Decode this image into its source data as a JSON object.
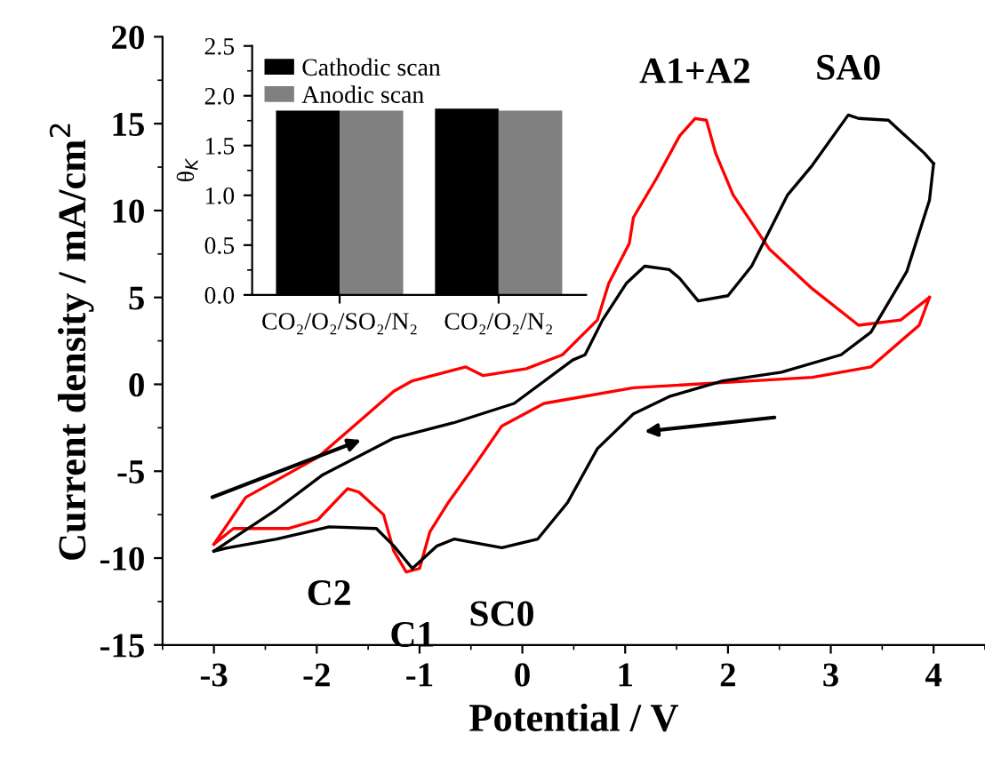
{
  "chart_data": [
    {
      "type": "line",
      "xlabel": "Potential / V",
      "ylabel": "Current density / mA/cm$^{2}$",
      "xlim": [
        -3.5,
        4.5
      ],
      "ylim": [
        -15,
        20
      ],
      "xticks": [
        -3,
        -2,
        -1,
        0,
        1,
        2,
        3,
        4
      ],
      "yticks": [
        -15,
        -10,
        -5,
        0,
        5,
        10,
        15,
        20
      ],
      "grid": false,
      "legend": false,
      "marker": "none",
      "line_style": "solid",
      "series": [
        {
          "color": "#ff0000",
          "x": [
            -3.0,
            -2.69,
            -1.99,
            -1.64,
            -1.25,
            -1.07,
            -0.55,
            -0.38,
            0.04,
            0.39,
            0.73,
            0.84,
            1.04,
            1.08,
            1.31,
            1.53,
            1.68,
            1.79,
            1.88,
            2.05,
            2.4,
            2.82,
            3.27,
            3.68,
            3.96
          ],
          "values": [
            -9.2,
            -6.5,
            -4.2,
            -2.4,
            -0.4,
            0.2,
            1.0,
            0.5,
            0.9,
            1.7,
            3.7,
            5.8,
            8.1,
            9.6,
            11.9,
            14.3,
            15.3,
            15.2,
            13.3,
            10.9,
            7.8,
            5.5,
            3.4,
            3.7,
            5.0
          ]
        },
        {
          "color": "#ff0000",
          "x": [
            3.96,
            3.86,
            3.39,
            2.82,
            2.23,
            1.08,
            0.21,
            -0.2,
            -0.48,
            -0.72,
            -0.9,
            -1.0,
            -1.13,
            -1.25,
            -1.35,
            -1.59,
            -1.7,
            -1.99,
            -2.28,
            -2.81,
            -3.0
          ],
          "values": [
            5.0,
            3.4,
            1.0,
            0.4,
            0.2,
            -0.2,
            -1.1,
            -2.4,
            -4.8,
            -6.8,
            -8.5,
            -10.6,
            -10.8,
            -9.6,
            -7.5,
            -6.2,
            -6.0,
            -7.8,
            -8.3,
            -8.3,
            -9.2
          ]
        },
        {
          "color": "#000000",
          "x": [
            -3.0,
            -2.39,
            -1.94,
            -1.25,
            -0.66,
            -0.08,
            0.49,
            0.61,
            0.78,
            1.01,
            1.19,
            1.43,
            1.53,
            1.71,
            2.0,
            2.23,
            2.58,
            2.82,
            3.17,
            3.27,
            3.56,
            3.91,
            4.0
          ],
          "values": [
            -9.6,
            -7.2,
            -5.2,
            -3.1,
            -2.2,
            -1.1,
            1.4,
            1.7,
            3.7,
            5.8,
            6.8,
            6.6,
            6.1,
            4.8,
            5.1,
            6.8,
            10.9,
            12.6,
            15.5,
            15.3,
            15.2,
            13.3,
            12.7
          ]
        },
        {
          "color": "#000000",
          "x": [
            4.0,
            3.96,
            3.74,
            3.39,
            3.1,
            2.52,
            1.95,
            1.43,
            1.08,
            0.73,
            0.44,
            0.15,
            -0.2,
            -0.66,
            -0.83,
            -1.07,
            -1.25,
            -1.42,
            -1.88,
            -2.39,
            -2.86,
            -3.0
          ],
          "values": [
            12.7,
            10.6,
            6.5,
            3.0,
            1.7,
            0.7,
            0.2,
            -0.7,
            -1.7,
            -3.7,
            -6.8,
            -8.9,
            -9.4,
            -8.9,
            -9.3,
            -10.6,
            -9.3,
            -8.3,
            -8.2,
            -8.9,
            -9.4,
            -9.6
          ]
        }
      ],
      "annotations": [
        {
          "text": "A1+A2",
          "x": 1.68,
          "y": 15.3
        },
        {
          "text": "SA0",
          "x": 3.17,
          "y": 15.5
        },
        {
          "text": "C2",
          "x": -1.88,
          "y": -8.2
        },
        {
          "text": "C1",
          "x": -1.07,
          "y": -10.6
        },
        {
          "text": "SC0",
          "x": -0.2,
          "y": -9.4
        }
      ]
    },
    {
      "type": "bar",
      "ylabel": "θ$_{K}$",
      "categories": [
        "CO₂/O₂/SO₂/N₂",
        "CO₂/O₂/N₂"
      ],
      "ylim": [
        0,
        2.5
      ],
      "yticks": [
        {
          "value": 0,
          "label": "0.0"
        },
        {
          "value": 0.5,
          "label": "0.5"
        },
        {
          "value": 1,
          "label": "1.0"
        },
        {
          "value": 1.5,
          "label": "1.5"
        },
        {
          "value": 2,
          "label": "2.0"
        },
        {
          "value": 2.5,
          "label": "2.5"
        }
      ],
      "legend": "top left",
      "grid": false,
      "series": [
        {
          "name": "Cathodic scan",
          "color": "#000000",
          "values": [
            1.85,
            1.87
          ]
        },
        {
          "name": "Anodic scan",
          "color": "#808080",
          "values": [
            1.85,
            1.85
          ]
        }
      ]
    }
  ]
}
